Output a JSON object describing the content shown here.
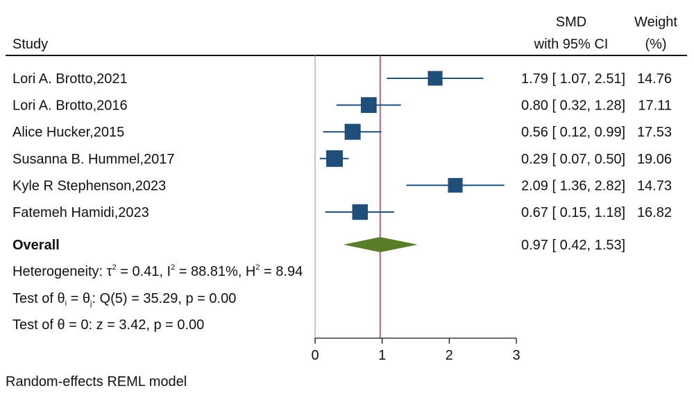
{
  "header": {
    "study": "Study",
    "effect_line1": "SMD",
    "effect_line2": "with 95% CI",
    "weight_line1": "Weight",
    "weight_line2": "(%)"
  },
  "overall": {
    "label": "Overall",
    "ci_text": "0.97 [ 0.42,  1.53]"
  },
  "stats": {
    "heterogeneity": {
      "p1": "Heterogeneity: τ",
      "e1": "2",
      "p2": " = 0.41, I",
      "e2": "2",
      "p3": " = 88.81%, H",
      "e3": "2",
      "p4": " = 8.94"
    },
    "test_thetas": {
      "p1": "Test of θ",
      "s1": "i",
      "p2": " = θ",
      "s2": "j",
      "p3": ": Q(5) = 35.29, p = 0.00"
    },
    "test_theta_zero": "Test of θ = 0: z = 3.42, p = 0.00"
  },
  "footer": "Random-effects REML model",
  "chart_data": {
    "type": "forest",
    "xlim": [
      0,
      3
    ],
    "xticks": [
      0,
      1,
      2,
      3
    ],
    "reference_line": 0.97,
    "colors": {
      "study_marker": "#1f4e79",
      "ci_line": "#1f4e79",
      "overall_diamond": "#5a7d2a",
      "reference_line": "#d6215d",
      "zero_line": "#a6a6a6"
    },
    "studies": [
      {
        "label": "Lori A. Brotto,2021",
        "smd": 1.79,
        "lo": 1.07,
        "hi": 2.51,
        "weight": 14.76,
        "ci_text": "1.79 [ 1.07,  2.51]",
        "weight_text": "14.76"
      },
      {
        "label": "Lori A. Brotto,2016",
        "smd": 0.8,
        "lo": 0.32,
        "hi": 1.28,
        "weight": 17.11,
        "ci_text": "0.80 [ 0.32,  1.28]",
        "weight_text": "17.11"
      },
      {
        "label": "Alice Hucker,2015",
        "smd": 0.56,
        "lo": 0.12,
        "hi": 0.99,
        "weight": 17.53,
        "ci_text": "0.56 [ 0.12,  0.99]",
        "weight_text": "17.53"
      },
      {
        "label": "Susanna B. Hummel,2017",
        "smd": 0.29,
        "lo": 0.07,
        "hi": 0.5,
        "weight": 19.06,
        "ci_text": "0.29 [ 0.07,  0.50]",
        "weight_text": "19.06"
      },
      {
        "label": "Kyle R Stephenson,2023",
        "smd": 2.09,
        "lo": 1.36,
        "hi": 2.82,
        "weight": 14.73,
        "ci_text": "2.09 [ 1.36,  2.82]",
        "weight_text": "14.73"
      },
      {
        "label": "Fatemeh Hamidi,2023",
        "smd": 0.67,
        "lo": 0.15,
        "hi": 1.18,
        "weight": 16.82,
        "ci_text": "0.67 [ 0.15,  1.18]",
        "weight_text": "16.82"
      }
    ],
    "overall": {
      "smd": 0.97,
      "lo": 0.42,
      "hi": 1.53
    }
  }
}
